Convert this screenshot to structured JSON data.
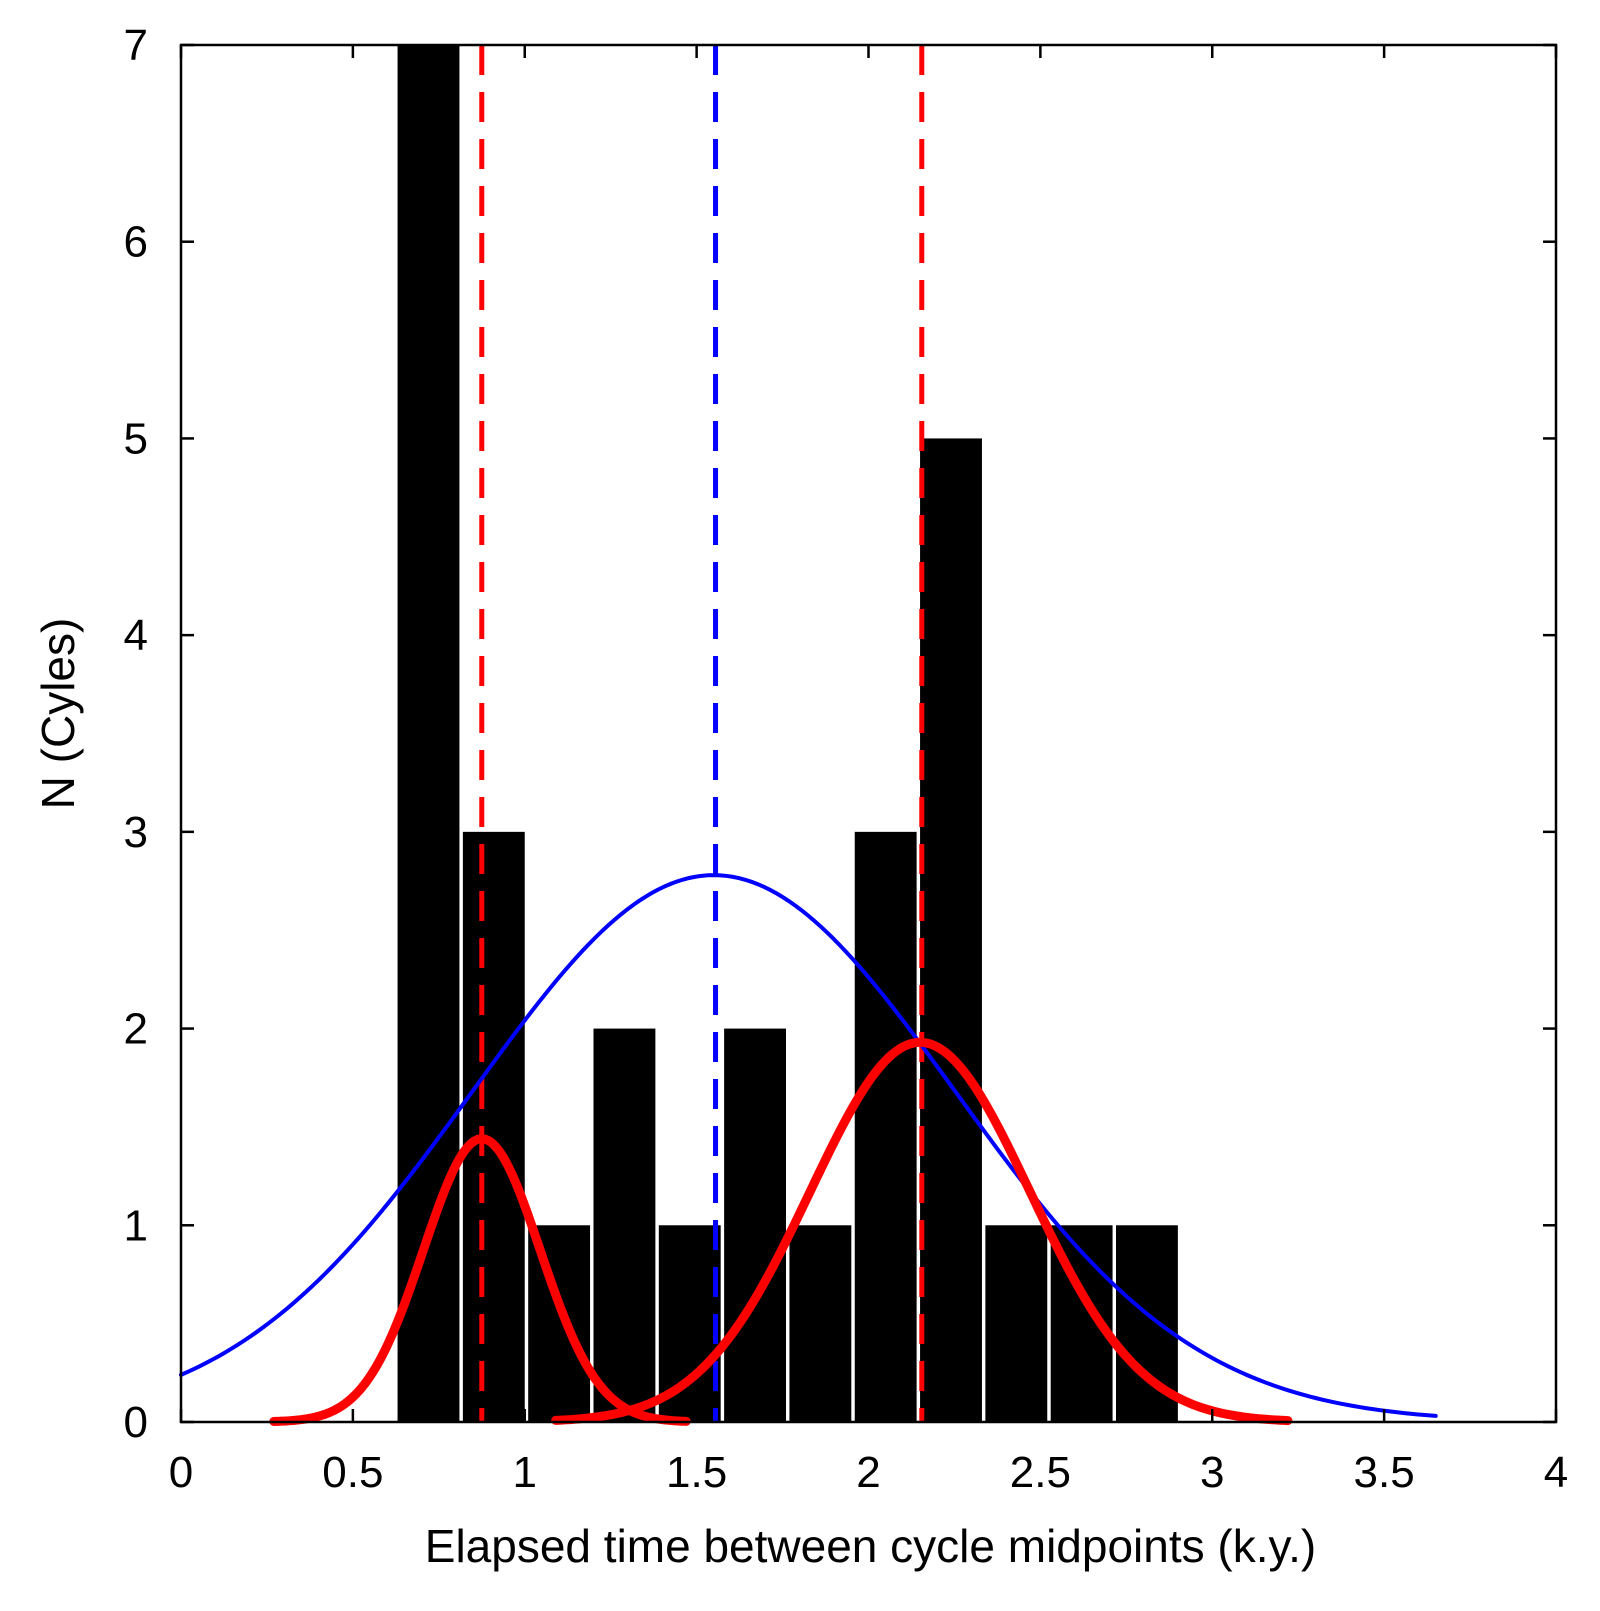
{
  "chart_data": {
    "type": "bar",
    "title": "",
    "xlabel": "Elapsed time between cycle midpoints (k.y.)",
    "ylabel": "N (Cyles)",
    "xlim": [
      0,
      4
    ],
    "ylim": [
      0,
      7
    ],
    "xticks": [
      "0",
      "0.5",
      "1",
      "1.5",
      "2",
      "2.5",
      "3",
      "3.5",
      "4"
    ],
    "yticks": [
      "0",
      "1",
      "2",
      "3",
      "4",
      "5",
      "6",
      "7"
    ],
    "grid": false,
    "legend": "none",
    "histogram": {
      "bin_width": 0.19,
      "bins": [
        {
          "x0": 0.63,
          "x1": 0.81,
          "count": 7
        },
        {
          "x0": 0.82,
          "x1": 1.0,
          "count": 3
        },
        {
          "x0": 1.01,
          "x1": 1.19,
          "count": 1
        },
        {
          "x0": 1.2,
          "x1": 1.38,
          "count": 2
        },
        {
          "x0": 1.39,
          "x1": 1.57,
          "count": 1
        },
        {
          "x0": 1.58,
          "x1": 1.76,
          "count": 2
        },
        {
          "x0": 1.77,
          "x1": 1.95,
          "count": 1
        },
        {
          "x0": 1.96,
          "x1": 2.14,
          "count": 3
        },
        {
          "x0": 2.15,
          "x1": 2.33,
          "count": 5
        },
        {
          "x0": 2.34,
          "x1": 2.52,
          "count": 1
        },
        {
          "x0": 2.53,
          "x1": 2.71,
          "count": 1
        },
        {
          "x0": 2.72,
          "x1": 2.9,
          "count": 1
        }
      ],
      "color": "#000000"
    },
    "curves": [
      {
        "kind": "gaussian",
        "mu": 1.55,
        "sigma": 0.7,
        "peak": 2.78,
        "x_range": [
          0,
          3.65
        ],
        "color": "#0000ff",
        "width": "thin"
      },
      {
        "kind": "gaussian",
        "mu": 0.875,
        "sigma": 0.17,
        "peak": 1.44,
        "x_range": [
          0.27,
          1.47
        ],
        "color": "#ff0000",
        "width": "thick"
      },
      {
        "kind": "gaussian",
        "mu": 2.15,
        "sigma": 0.32,
        "peak": 1.93,
        "x_range": [
          1.09,
          3.22
        ],
        "color": "#ff0000",
        "width": "thick"
      }
    ],
    "vlines": [
      {
        "x": 0.875,
        "color": "#ff0000",
        "style": "dashed"
      },
      {
        "x": 1.555,
        "color": "#0000ff",
        "style": "dashed"
      },
      {
        "x": 2.155,
        "color": "#ff0000",
        "style": "dashed"
      }
    ]
  }
}
